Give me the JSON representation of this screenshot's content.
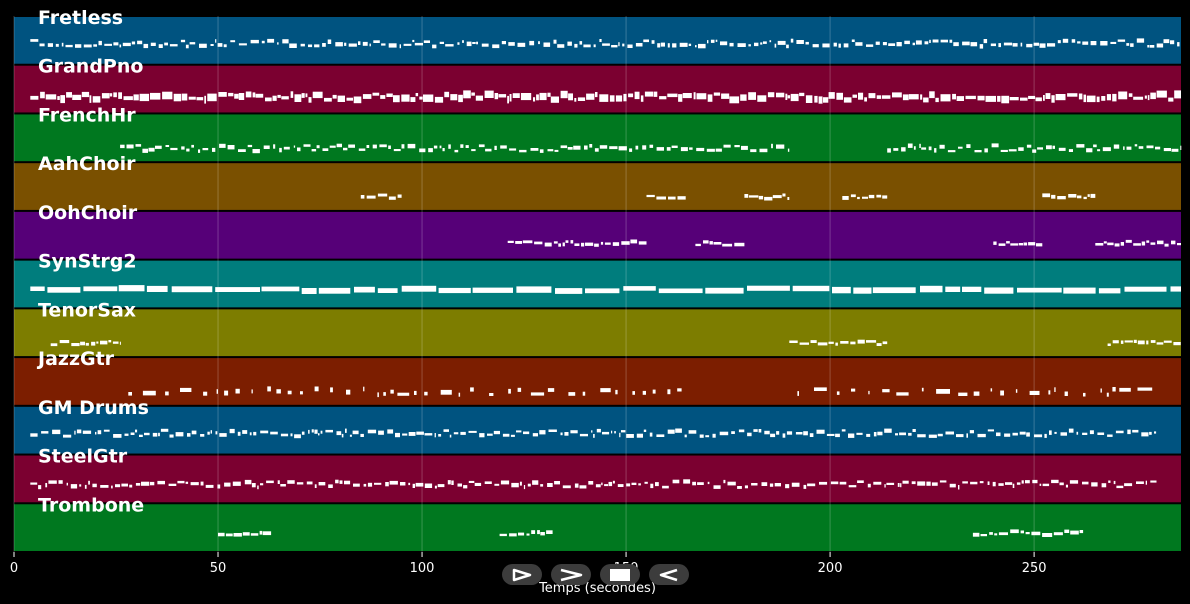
{
  "chart_data": {
    "type": "piano-roll",
    "xlabel": "Temps (secondes)",
    "xlim": [
      0,
      286
    ],
    "xticks": [
      0,
      50,
      100,
      150,
      200,
      250
    ],
    "grid": true,
    "tracks": [
      {
        "name": "Fretless",
        "color": "#005380",
        "segments": [
          [
            4,
            286
          ]
        ],
        "style": "dense-thin",
        "level": 0.6
      },
      {
        "name": "GrandPno",
        "color": "#7b0030",
        "segments": [
          [
            4,
            286
          ]
        ],
        "style": "dense-thick",
        "level": 0.5
      },
      {
        "name": "FrenchHr",
        "color": "#00781f",
        "segments": [
          [
            26,
            190
          ],
          [
            214,
            286
          ]
        ],
        "style": "dense-thin",
        "level": 0.45
      },
      {
        "name": "AahChoir",
        "color": "#7a5000",
        "segments": [
          [
            85,
            95
          ],
          [
            155,
            165
          ],
          [
            179,
            190
          ],
          [
            203,
            214
          ],
          [
            252,
            265
          ]
        ],
        "style": "phrases",
        "level": 0.45
      },
      {
        "name": "OohChoir",
        "color": "#560078",
        "segments": [
          [
            121,
            155
          ],
          [
            167,
            179
          ],
          [
            240,
            252
          ],
          [
            265,
            286
          ]
        ],
        "style": "phrases",
        "level": 0.5
      },
      {
        "name": "SynStrg2",
        "color": "#007d7d",
        "segments": [
          [
            4,
            286
          ]
        ],
        "style": "long-thick",
        "level": 0.55
      },
      {
        "name": "TenorSax",
        "color": "#7d7d00",
        "segments": [
          [
            9,
            26
          ],
          [
            190,
            214
          ],
          [
            268,
            286
          ]
        ],
        "style": "phrases",
        "level": 0.45
      },
      {
        "name": "JazzGtr",
        "color": "#7c1e00",
        "segments": [
          [
            28,
            165
          ],
          [
            192,
            280
          ]
        ],
        "style": "sparse",
        "level": 0.45
      },
      {
        "name": "GM Drums",
        "color": "#005380",
        "segments": [
          [
            4,
            280
          ]
        ],
        "style": "dense-thin",
        "level": 0.6
      },
      {
        "name": "SteelGtr",
        "color": "#7b0030",
        "segments": [
          [
            4,
            280
          ]
        ],
        "style": "dense-thin",
        "level": 0.55
      },
      {
        "name": "Trombone",
        "color": "#00781f",
        "segments": [
          [
            50,
            63
          ],
          [
            119,
            132
          ],
          [
            235,
            262
          ]
        ],
        "style": "phrases",
        "level": 0.55
      }
    ]
  }
}
